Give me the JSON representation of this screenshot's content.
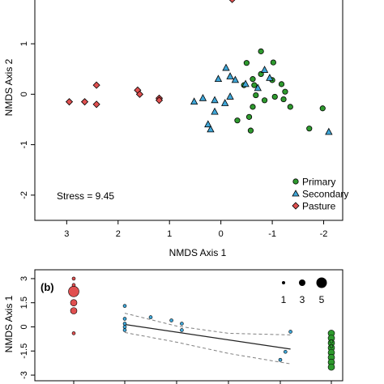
{
  "colors": {
    "primary": "#2e9a2e",
    "secondary": "#3fa6d8",
    "pasture": "#e05050",
    "reg_line": "#222222",
    "ci_line": "#808080"
  },
  "chart_data": [
    {
      "type": "scatter",
      "panel_label": "",
      "xlabel": "NMDS Axis 1",
      "ylabel": "NMDS Axis 2",
      "xlim": [
        3.62,
        -2.37
      ],
      "ylim": [
        -2.5,
        1.9
      ],
      "x_reversed": true,
      "xticks": [
        3,
        2,
        1,
        0,
        -1,
        -2
      ],
      "xtick_labels": [
        "3",
        "2",
        "1",
        "0",
        "-1",
        "-2"
      ],
      "yticks": [
        -2,
        -1,
        0,
        1
      ],
      "ytick_labels": [
        "-2",
        "-1",
        "0",
        "1"
      ],
      "annotation": "Stress = 9.45",
      "legend": {
        "placement": "bottom-right",
        "entries": [
          "Primary",
          "Secondary",
          "Pasture"
        ]
      },
      "series": [
        {
          "name": "Primary",
          "marker": "circle",
          "color": "#2e9a2e",
          "points": [
            [
              -0.78,
              0.85
            ],
            [
              -0.5,
              0.62
            ],
            [
              -1.02,
              0.63
            ],
            [
              -0.78,
              0.4
            ],
            [
              -0.62,
              0.3
            ],
            [
              -0.45,
              0.18
            ],
            [
              -0.65,
              0.18
            ],
            [
              -1.0,
              0.28
            ],
            [
              -1.18,
              0.2
            ],
            [
              -1.25,
              0.05
            ],
            [
              -1.05,
              -0.05
            ],
            [
              -1.22,
              -0.1
            ],
            [
              -0.68,
              -0.02
            ],
            [
              -0.62,
              -0.25
            ],
            [
              -0.55,
              -0.45
            ],
            [
              -0.32,
              -0.52
            ],
            [
              -0.85,
              -0.12
            ],
            [
              -1.35,
              -0.25
            ],
            [
              -1.98,
              -0.28
            ],
            [
              -1.72,
              -0.68
            ],
            [
              -0.58,
              -0.72
            ]
          ]
        },
        {
          "name": "Secondary",
          "marker": "triangle",
          "color": "#3fa6d8",
          "points": [
            [
              -0.1,
              0.52
            ],
            [
              -0.18,
              0.35
            ],
            [
              -0.28,
              0.28
            ],
            [
              0.05,
              0.3
            ],
            [
              -0.48,
              0.2
            ],
            [
              -0.72,
              0.12
            ],
            [
              -0.85,
              0.48
            ],
            [
              -0.95,
              0.32
            ],
            [
              0.52,
              -0.15
            ],
            [
              0.35,
              -0.08
            ],
            [
              0.12,
              -0.12
            ],
            [
              -0.18,
              -0.05
            ],
            [
              -0.08,
              -0.18
            ],
            [
              0.12,
              -0.35
            ],
            [
              0.25,
              -0.6
            ],
            [
              0.2,
              -0.7
            ],
            [
              -2.1,
              -0.75
            ]
          ]
        },
        {
          "name": "Pasture",
          "marker": "diamond",
          "color": "#e05050",
          "points": [
            [
              -0.22,
              1.88
            ],
            [
              2.42,
              0.18
            ],
            [
              2.42,
              -0.2
            ],
            [
              2.65,
              -0.15
            ],
            [
              2.95,
              -0.15
            ],
            [
              1.62,
              0.08
            ],
            [
              1.58,
              0.0
            ],
            [
              1.2,
              -0.08
            ],
            [
              1.2,
              -0.12
            ]
          ]
        }
      ]
    },
    {
      "type": "scatter",
      "panel_label": "(b)",
      "ylabel": "NMDS Axis 1",
      "yticks": [
        3,
        1.5,
        0,
        -1.5,
        -3
      ],
      "ytick_labels": [
        "3",
        "1.5",
        "0",
        "-1.5",
        "-3"
      ],
      "ylim": [
        -3.35,
        3.55
      ],
      "xlim": [
        0,
        6
      ],
      "size_legend": {
        "labels": [
          "1",
          "3",
          "5"
        ],
        "values": [
          1,
          3,
          5
        ]
      },
      "regression": {
        "x": [
          1.0,
          4.2
        ],
        "y": [
          0.15,
          -1.38
        ]
      },
      "ci_upper": {
        "x": [
          1.0,
          2.0,
          3.0,
          4.2
        ],
        "y": [
          0.85,
          0.05,
          -0.4,
          -0.5
        ]
      },
      "ci_lower": {
        "x": [
          1.0,
          2.0,
          3.0,
          4.2
        ],
        "y": [
          -0.35,
          -0.95,
          -1.65,
          -2.3
        ]
      },
      "series": [
        {
          "name": "Pasture",
          "color": "#e05050",
          "points": [
            [
              0,
              3.0,
              1
            ],
            [
              0,
              2.6,
              1
            ],
            [
              0,
              2.2,
              5
            ],
            [
              0,
              1.5,
              3
            ],
            [
              0,
              1.0,
              3
            ],
            [
              0,
              -0.4,
              1
            ]
          ]
        },
        {
          "name": "Secondary",
          "color": "#3fa6d8",
          "points": [
            [
              1,
              1.3,
              1
            ],
            [
              1,
              0.5,
              1
            ],
            [
              1,
              0.2,
              1
            ],
            [
              1,
              0.0,
              1
            ],
            [
              1,
              -0.2,
              1
            ],
            [
              1.5,
              0.6,
              1
            ],
            [
              1.9,
              0.4,
              1
            ],
            [
              2.1,
              0.2,
              1
            ],
            [
              2.1,
              -0.2,
              1
            ],
            [
              4.1,
              -1.55,
              1
            ],
            [
              4.2,
              -0.3,
              1
            ],
            [
              4.0,
              -2.05,
              1
            ]
          ]
        },
        {
          "name": "Primary",
          "color": "#2e9a2e",
          "points": [
            [
              5,
              -0.4,
              3
            ],
            [
              5,
              -0.7,
              3
            ],
            [
              5,
              -1.0,
              3
            ],
            [
              5,
              -1.3,
              3
            ],
            [
              5,
              -1.6,
              3
            ],
            [
              5,
              -1.9,
              3
            ],
            [
              5,
              -2.2,
              3
            ],
            [
              5,
              -2.5,
              3
            ],
            [
              5,
              -0.9,
              1
            ],
            [
              5,
              -1.2,
              1
            ]
          ]
        }
      ]
    }
  ]
}
